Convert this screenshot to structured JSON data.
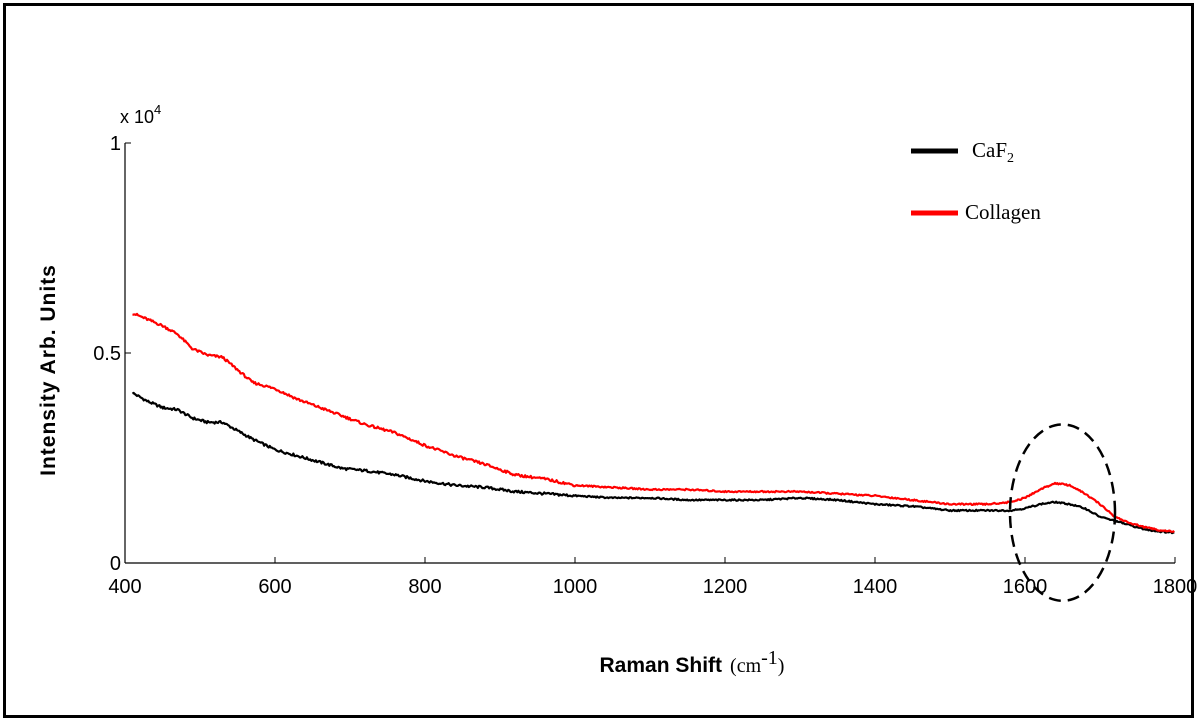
{
  "chart_data": {
    "type": "line",
    "xlabel": "Raman Shift",
    "xlabel_unit": "(cm",
    "xlabel_unit_sup": "-1",
    "xlabel_unit_close": ")",
    "ylabel": "Intensity Arb. Units",
    "y_multiplier_base": "x 10",
    "y_multiplier_exp": "4",
    "xlim": [
      400,
      1800
    ],
    "ylim": [
      0,
      1
    ],
    "xticks": [
      400,
      600,
      800,
      1000,
      1200,
      1400,
      1600,
      1800
    ],
    "yticks": [
      0,
      0.5,
      1
    ],
    "ytick_labels": [
      "0",
      "0.5",
      "1"
    ],
    "grid": false,
    "legend_position": "top-right",
    "series": [
      {
        "name": "CaF",
        "name_sub": "2",
        "color": "#000000",
        "x": [
          410,
          430,
          450,
          470,
          490,
          510,
          530,
          550,
          570,
          600,
          630,
          660,
          690,
          720,
          760,
          800,
          840,
          880,
          920,
          960,
          1000,
          1050,
          1100,
          1150,
          1200,
          1250,
          1300,
          1350,
          1400,
          1450,
          1500,
          1550,
          1580,
          1600,
          1620,
          1640,
          1660,
          1680,
          1700,
          1720,
          1740,
          1760,
          1780,
          1800
        ],
        "y": [
          0.405,
          0.385,
          0.37,
          0.365,
          0.345,
          0.335,
          0.335,
          0.315,
          0.295,
          0.27,
          0.255,
          0.24,
          0.225,
          0.22,
          0.21,
          0.195,
          0.185,
          0.18,
          0.17,
          0.165,
          0.16,
          0.155,
          0.155,
          0.15,
          0.15,
          0.15,
          0.155,
          0.15,
          0.14,
          0.135,
          0.125,
          0.125,
          0.125,
          0.13,
          0.14,
          0.145,
          0.14,
          0.13,
          0.11,
          0.1,
          0.09,
          0.08,
          0.075,
          0.072
        ]
      },
      {
        "name": "Collagen",
        "color": "#ff0000",
        "x": [
          410,
          430,
          450,
          470,
          490,
          510,
          530,
          550,
          570,
          600,
          630,
          660,
          690,
          720,
          760,
          800,
          840,
          880,
          920,
          960,
          1000,
          1050,
          1100,
          1150,
          1200,
          1250,
          1300,
          1350,
          1400,
          1450,
          1500,
          1550,
          1580,
          1600,
          1620,
          1640,
          1660,
          1680,
          1700,
          1720,
          1740,
          1760,
          1780,
          1800
        ],
        "y": [
          0.595,
          0.58,
          0.565,
          0.545,
          0.51,
          0.495,
          0.49,
          0.46,
          0.43,
          0.415,
          0.39,
          0.37,
          0.35,
          0.33,
          0.31,
          0.28,
          0.255,
          0.235,
          0.21,
          0.2,
          0.185,
          0.18,
          0.175,
          0.175,
          0.17,
          0.17,
          0.17,
          0.165,
          0.16,
          0.15,
          0.14,
          0.14,
          0.145,
          0.155,
          0.175,
          0.19,
          0.185,
          0.165,
          0.14,
          0.11,
          0.095,
          0.085,
          0.078,
          0.075
        ]
      }
    ],
    "annotation": {
      "shape": "dashed-ellipse",
      "center_x": 1650,
      "center_y": 0.12,
      "radius_x": 70,
      "radius_y": 0.21
    }
  }
}
